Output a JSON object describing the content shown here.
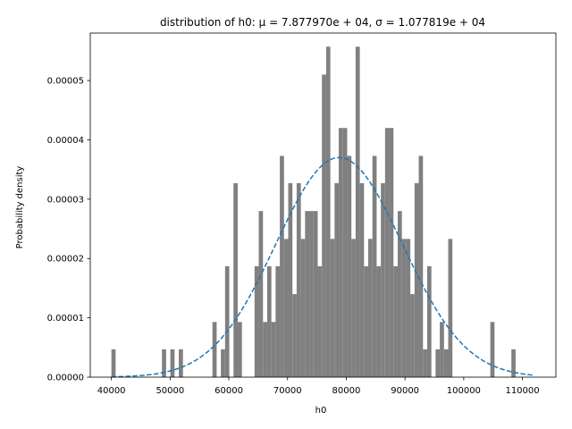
{
  "chart_data": {
    "type": "bar",
    "title": "distribution of h0: μ = 7.877970e + 04, σ = 1.077819e + 04",
    "xlabel": "h0",
    "ylabel": "Probability density",
    "xlim": [
      36400,
      115700
    ],
    "ylim": [
      0,
      5.8e-05
    ],
    "xticks": [
      40000,
      50000,
      60000,
      70000,
      80000,
      90000,
      100000,
      110000
    ],
    "xtick_labels": [
      "40000",
      "50000",
      "60000",
      "70000",
      "80000",
      "90000",
      "100000",
      "110000"
    ],
    "yticks": [
      0,
      1e-05,
      2e-05,
      3e-05,
      4e-05,
      5e-05
    ],
    "ytick_labels": [
      "0.00000",
      "0.00001",
      "0.00002",
      "0.00003",
      "0.00004",
      "0.00005"
    ],
    "histogram": {
      "color": "#808080",
      "bin_start": 40000,
      "bin_width": 717,
      "densities": [
        4.7e-06,
        0,
        0,
        0,
        0,
        0,
        0,
        0,
        0,
        0,
        0,
        0,
        4.7e-06,
        0,
        4.7e-06,
        0,
        4.7e-06,
        0,
        0,
        0,
        0,
        0,
        0,
        0,
        9.3e-06,
        0,
        4.7e-06,
        1.87e-05,
        0,
        3.27e-05,
        9.3e-06,
        0,
        0,
        0,
        1.87e-05,
        2.8e-05,
        9.3e-06,
        1.87e-05,
        9.3e-06,
        1.87e-05,
        3.73e-05,
        2.33e-05,
        3.27e-05,
        1.4e-05,
        3.27e-05,
        2.33e-05,
        2.8e-05,
        2.8e-05,
        2.8e-05,
        1.87e-05,
        5.1e-05,
        5.57e-05,
        2.33e-05,
        3.27e-05,
        4.2e-05,
        4.2e-05,
        3.73e-05,
        2.33e-05,
        5.57e-05,
        3.27e-05,
        1.87e-05,
        2.33e-05,
        3.73e-05,
        1.87e-05,
        3.27e-05,
        4.2e-05,
        4.2e-05,
        1.87e-05,
        2.8e-05,
        2.33e-05,
        2.33e-05,
        1.4e-05,
        3.27e-05,
        3.73e-05,
        4.7e-06,
        1.87e-05,
        0,
        4.7e-06,
        9.3e-06,
        4.7e-06,
        2.33e-05,
        0,
        0,
        0,
        0,
        0,
        0,
        0,
        0,
        0,
        9.3e-06,
        0,
        0,
        0,
        0,
        4.7e-06,
        0,
        0,
        0,
        0
      ]
    },
    "series": [
      {
        "type": "line",
        "style": "dashed",
        "color": "#1f77b4",
        "mu": 78779.7,
        "sigma": 10778.19,
        "x_range": [
          40000,
          111700
        ]
      }
    ],
    "grid": false,
    "legend": "none"
  }
}
